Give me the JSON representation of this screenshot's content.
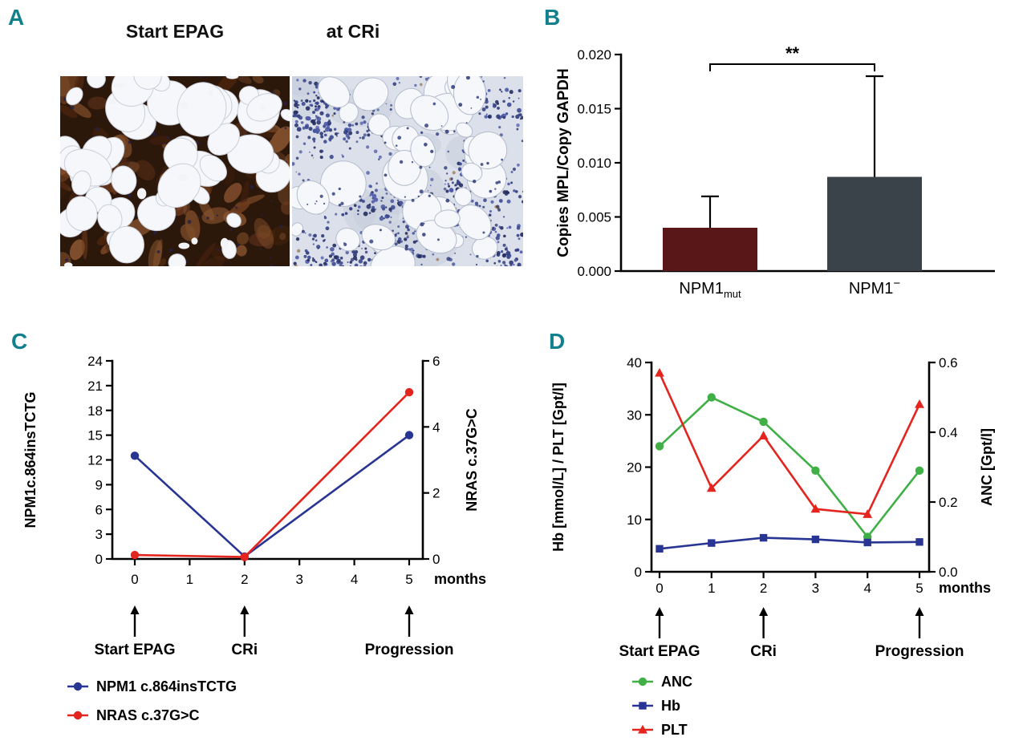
{
  "figure": {
    "accent_color": "#12808d",
    "panels": {
      "A": {
        "letter": "A",
        "titles": {
          "left": "Start EPAG",
          "right": "at CRi"
        }
      },
      "B": {
        "letter": "B"
      },
      "C": {
        "letter": "C"
      },
      "D": {
        "letter": "D"
      }
    }
  },
  "chart_data": [
    {
      "id": "B",
      "type": "bar",
      "ylabel": "Copies MPL/Copy GAPDH",
      "ylim": [
        0,
        0.02
      ],
      "yticks": [
        0,
        0.005,
        0.01,
        0.015,
        0.02
      ],
      "ytick_labels": [
        "0.000",
        "0.005",
        "0.010",
        "0.015",
        "0.020"
      ],
      "categories": [
        {
          "base": "NPM1",
          "suffix": "mut",
          "suffix_style": "sub"
        },
        {
          "base": "NPM1",
          "suffix": "−",
          "suffix_style": "sup"
        }
      ],
      "values": [
        0.004,
        0.0087
      ],
      "errors_up": [
        0.0029,
        0.0093
      ],
      "bar_colors": [
        "#5a1717",
        "#3a4349"
      ],
      "significance": {
        "label": "**",
        "between": [
          0,
          1
        ]
      }
    },
    {
      "id": "C",
      "type": "line",
      "x": {
        "label": "months",
        "min": 0,
        "max": 5,
        "ticks": [
          0,
          1,
          2,
          3,
          4,
          5
        ]
      },
      "left_axis": {
        "label": "NPM1c.864insTCTG",
        "min": 0,
        "max": 24,
        "ticks": [
          0,
          3,
          6,
          9,
          12,
          15,
          18,
          21,
          24
        ]
      },
      "right_axis": {
        "label": "NRAS c.37G>C",
        "min": 0,
        "max": 6,
        "ticks": [
          0,
          2,
          4,
          6
        ]
      },
      "series": [
        {
          "name": "NPM1 c.864insTCTG",
          "axis": "left",
          "marker": "circle",
          "color": "#283593",
          "x": [
            0,
            2,
            5
          ],
          "y": [
            12.5,
            0.3,
            15
          ]
        },
        {
          "name": "NRAS c.37G>C",
          "axis": "right",
          "marker": "circle",
          "color": "#e4251f",
          "x": [
            0,
            2,
            5
          ],
          "y": [
            0.12,
            0.06,
            5.05
          ]
        }
      ],
      "annotations": [
        {
          "x": 0,
          "label": "Start EPAG"
        },
        {
          "x": 2,
          "label": "CRi"
        },
        {
          "x": 5,
          "label": "Progression"
        }
      ],
      "legend_position": "below-left"
    },
    {
      "id": "D",
      "type": "line",
      "x": {
        "label": "months",
        "min": 0,
        "max": 5,
        "ticks": [
          0,
          1,
          2,
          3,
          4,
          5
        ]
      },
      "left_axis": {
        "label": "Hb [mmol/L] / PLT [Gpt/l]",
        "min": 0,
        "max": 40,
        "ticks": [
          0,
          10,
          20,
          30,
          40
        ]
      },
      "right_axis": {
        "label": "ANC [Gpt/l]",
        "min": 0,
        "max": 0.6,
        "ticks": [
          0,
          0.2,
          0.4,
          0.6
        ],
        "tick_labels": [
          "0.0",
          "0.2",
          "0.4",
          "0.6"
        ]
      },
      "series": [
        {
          "name": "ANC",
          "axis": "right",
          "marker": "circle",
          "color": "#3faf46",
          "x": [
            0,
            1,
            2,
            3,
            4,
            5
          ],
          "y": [
            0.36,
            0.5,
            0.43,
            0.29,
            0.1,
            0.29
          ]
        },
        {
          "name": "Hb",
          "axis": "left",
          "marker": "square",
          "color": "#283593",
          "x": [
            0,
            1,
            2,
            3,
            4,
            5
          ],
          "y": [
            4.4,
            5.5,
            6.5,
            6.2,
            5.6,
            5.7
          ]
        },
        {
          "name": "PLT",
          "axis": "left",
          "marker": "triangle",
          "color": "#e4251f",
          "x": [
            0,
            1,
            2,
            3,
            4,
            5
          ],
          "y": [
            38,
            16,
            26,
            12,
            11,
            32
          ]
        }
      ],
      "annotations": [
        {
          "x": 0,
          "label": "Start EPAG"
        },
        {
          "x": 2,
          "label": "CRi"
        },
        {
          "x": 5,
          "label": "Progression"
        }
      ],
      "legend_position": "below-left"
    }
  ]
}
